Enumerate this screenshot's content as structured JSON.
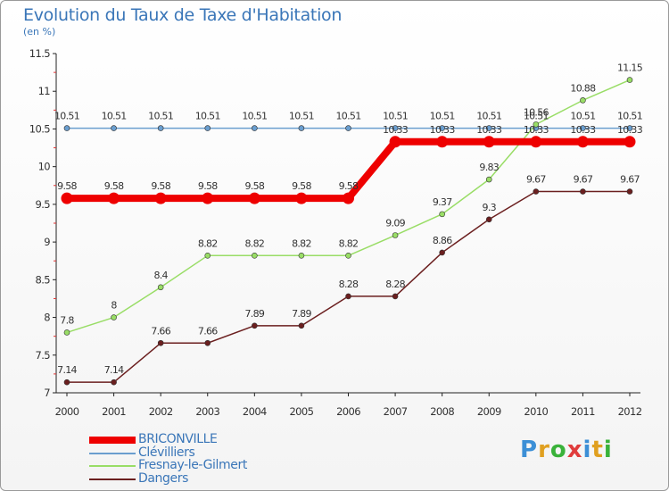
{
  "title": "Evolution du Taux de Taxe d'Habitation",
  "unit_label": "(en %)",
  "brand": {
    "letters": [
      "P",
      "r",
      "o",
      "x",
      "i",
      "t",
      "i"
    ],
    "colors": [
      "#3c8fd6",
      "#e0a020",
      "#3ab23a",
      "#e03c3c",
      "#3c8fd6",
      "#e0a020",
      "#3ab23a"
    ]
  },
  "chart_data": {
    "type": "line",
    "title": "Evolution du Taux de Taxe d'Habitation",
    "ylabel": "(en %)",
    "xlabel": "",
    "x": [
      "2000",
      "2001",
      "2002",
      "2003",
      "2004",
      "2005",
      "2006",
      "2007",
      "2008",
      "2009",
      "2010",
      "2011",
      "2012"
    ],
    "ylim": [
      7,
      11.5
    ],
    "yticks": [
      "7",
      "7.5",
      "8",
      "8.5",
      "9",
      "9.5",
      "10",
      "10.5",
      "11",
      "11.5"
    ],
    "grid": false,
    "legend_position": "bottom-left",
    "series": [
      {
        "name": "BRICONVILLE",
        "color": "#ee0000",
        "values": [
          9.58,
          9.58,
          9.58,
          9.58,
          9.58,
          9.58,
          9.58,
          10.33,
          10.33,
          10.33,
          10.33,
          10.33,
          10.33
        ],
        "labels": [
          "9.58",
          "9.58",
          "9.58",
          "9.58",
          "9.58",
          "9.58",
          "9.58",
          "10.33",
          "10.33",
          "10.33",
          "10.33",
          "10.33",
          "10.33"
        ]
      },
      {
        "name": "Clévilliers",
        "color": "#6a9ecf",
        "values": [
          10.51,
          10.51,
          10.51,
          10.51,
          10.51,
          10.51,
          10.51,
          10.51,
          10.51,
          10.51,
          10.51,
          10.51,
          10.51
        ],
        "labels": [
          "10.51",
          "10.51",
          "10.51",
          "10.51",
          "10.51",
          "10.51",
          "10.51",
          "10.51",
          "10.51",
          "10.51",
          "10.51",
          "10.51",
          "10.51"
        ]
      },
      {
        "name": "Fresnay-le-Gilmert",
        "color": "#99dd66",
        "values": [
          7.8,
          8,
          8.4,
          8.82,
          8.82,
          8.82,
          8.82,
          9.09,
          9.37,
          9.83,
          10.56,
          10.88,
          11.15
        ],
        "labels": [
          "7.8",
          "8",
          "8.4",
          "8.82",
          "8.82",
          "8.82",
          "8.82",
          "9.09",
          "9.37",
          "9.83",
          "10.56",
          "10.88",
          "11.15"
        ]
      },
      {
        "name": "Dangers",
        "color": "#6b1f1f",
        "values": [
          7.14,
          7.14,
          7.66,
          7.66,
          7.89,
          7.89,
          8.28,
          8.28,
          8.86,
          9.3,
          9.67,
          9.67,
          9.67
        ],
        "labels": [
          "7.14",
          "7.14",
          "7.66",
          "7.66",
          "7.89",
          "7.89",
          "8.28",
          "8.28",
          "8.86",
          "9.3",
          "9.67",
          "9.67",
          "9.67"
        ]
      }
    ]
  }
}
